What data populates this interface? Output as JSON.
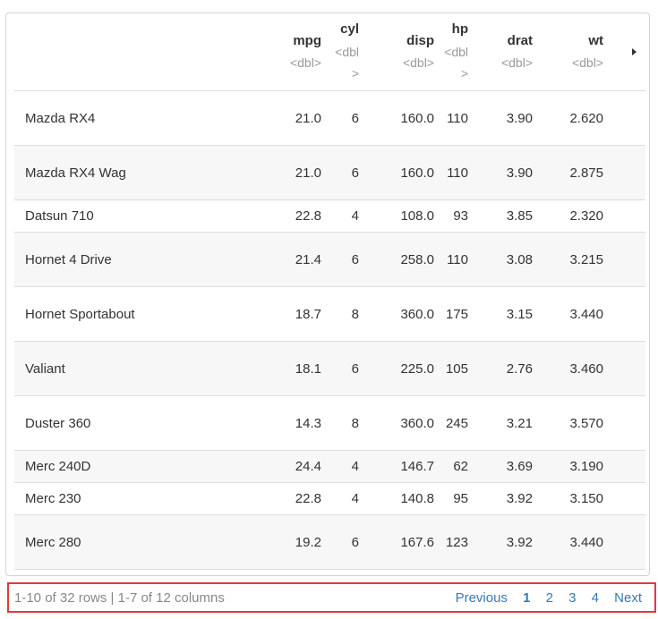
{
  "table": {
    "columns": [
      {
        "name": "mpg",
        "type": "<dbl>"
      },
      {
        "name": "cyl",
        "type": "<dbl>"
      },
      {
        "name": "disp",
        "type": "<dbl>"
      },
      {
        "name": "hp",
        "type": "<dbl>"
      },
      {
        "name": "drat",
        "type": "<dbl>"
      },
      {
        "name": "wt",
        "type": "<dbl>"
      }
    ],
    "rows": [
      {
        "name": "Mazda RX4",
        "mpg": "21.0",
        "cyl": "6",
        "disp": "160.0",
        "hp": "110",
        "drat": "3.90",
        "wt": "2.620"
      },
      {
        "name": "Mazda RX4 Wag",
        "mpg": "21.0",
        "cyl": "6",
        "disp": "160.0",
        "hp": "110",
        "drat": "3.90",
        "wt": "2.875"
      },
      {
        "name": "Datsun 710",
        "mpg": "22.8",
        "cyl": "4",
        "disp": "108.0",
        "hp": "93",
        "drat": "3.85",
        "wt": "2.320"
      },
      {
        "name": "Hornet 4 Drive",
        "mpg": "21.4",
        "cyl": "6",
        "disp": "258.0",
        "hp": "110",
        "drat": "3.08",
        "wt": "3.215"
      },
      {
        "name": "Hornet Sportabout",
        "mpg": "18.7",
        "cyl": "8",
        "disp": "360.0",
        "hp": "175",
        "drat": "3.15",
        "wt": "3.440"
      },
      {
        "name": "Valiant",
        "mpg": "18.1",
        "cyl": "6",
        "disp": "225.0",
        "hp": "105",
        "drat": "2.76",
        "wt": "3.460"
      },
      {
        "name": "Duster 360",
        "mpg": "14.3",
        "cyl": "8",
        "disp": "360.0",
        "hp": "245",
        "drat": "3.21",
        "wt": "3.570"
      },
      {
        "name": "Merc 240D",
        "mpg": "24.4",
        "cyl": "4",
        "disp": "146.7",
        "hp": "62",
        "drat": "3.69",
        "wt": "3.190"
      },
      {
        "name": "Merc 230",
        "mpg": "22.8",
        "cyl": "4",
        "disp": "140.8",
        "hp": "95",
        "drat": "3.92",
        "wt": "3.150"
      },
      {
        "name": "Merc 280",
        "mpg": "19.2",
        "cyl": "6",
        "disp": "167.6",
        "hp": "123",
        "drat": "3.92",
        "wt": "3.440"
      }
    ]
  },
  "footer": {
    "info": "1-10 of 32 rows | 1-7 of 12 columns",
    "previous": "Previous",
    "pages": [
      "1",
      "2",
      "3",
      "4"
    ],
    "next": "Next"
  },
  "colors": {
    "link": "#337ab7",
    "highlight_border": "#e03a3a",
    "stripe": "#f7f7f7"
  }
}
